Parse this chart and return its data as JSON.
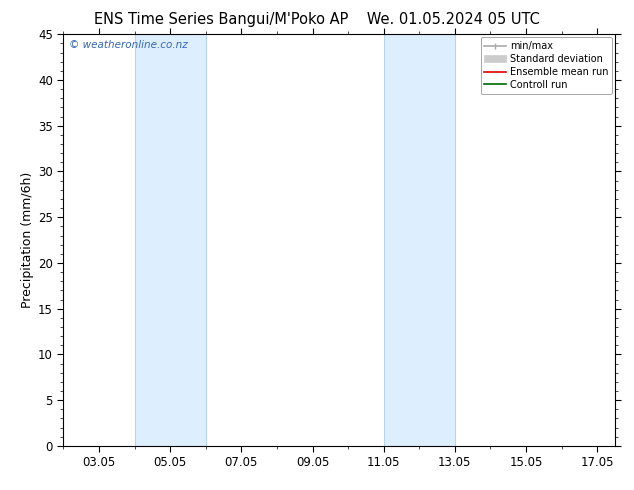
{
  "title": "ENS Time Series Bangui/M'Poko AP",
  "title_date": "We. 01.05.2024 05 UTC",
  "ylabel": "Precipitation (mm/6h)",
  "ylim": [
    0,
    45
  ],
  "yticks": [
    0,
    5,
    10,
    15,
    20,
    25,
    30,
    35,
    40,
    45
  ],
  "xlim": [
    2.0,
    17.5
  ],
  "xtick_labels": [
    "03.05",
    "05.05",
    "07.05",
    "09.05",
    "11.05",
    "13.05",
    "15.05",
    "17.05"
  ],
  "xtick_positions": [
    3.0,
    5.0,
    7.0,
    9.0,
    11.0,
    13.0,
    15.0,
    17.0
  ],
  "shaded_bands": [
    {
      "xmin": 4.0,
      "xmax": 6.0
    },
    {
      "xmin": 11.0,
      "xmax": 13.0
    }
  ],
  "band_color": "#ddeeff",
  "band_edge_color": "#b8d4e8",
  "background_color": "#ffffff",
  "watermark": "© weatheronline.co.nz",
  "watermark_color": "#3366bb",
  "legend_items": [
    {
      "label": "min/max",
      "color": "#aaaaaa",
      "lw": 1.2
    },
    {
      "label": "Standard deviation",
      "color": "#cccccc",
      "lw": 5
    },
    {
      "label": "Ensemble mean run",
      "color": "#dd0000",
      "lw": 1.2
    },
    {
      "label": "Controll run",
      "color": "#006600",
      "lw": 1.2
    }
  ],
  "title_fontsize": 10.5,
  "axis_label_fontsize": 9,
  "tick_fontsize": 8.5
}
